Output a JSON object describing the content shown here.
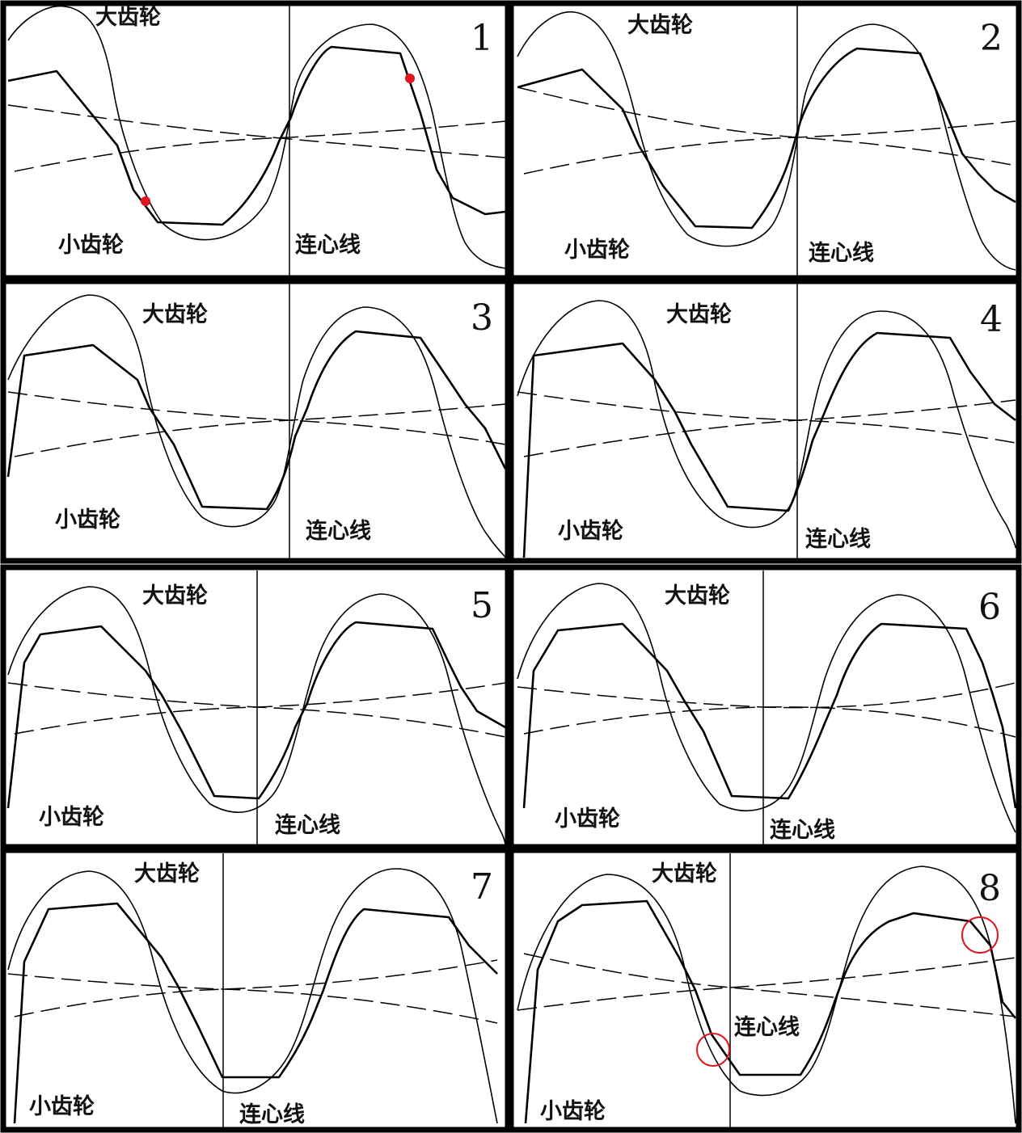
{
  "panels": [
    {
      "number": "1",
      "large_gear": "大齿轮",
      "small_gear": "小齿轮",
      "center_line": "连心线"
    },
    {
      "number": "2",
      "large_gear": "大齿轮",
      "small_gear": "小齿轮",
      "center_line": "连心线"
    },
    {
      "number": "3",
      "large_gear": "大齿轮",
      "small_gear": "小齿轮",
      "center_line": "连心线"
    },
    {
      "number": "4",
      "large_gear": "大齿轮",
      "small_gear": "小齿轮",
      "center_line": "连心线"
    },
    {
      "number": "5",
      "large_gear": "大齿轮",
      "small_gear": "小齿轮",
      "center_line": "连心线"
    },
    {
      "number": "6",
      "large_gear": "大齿轮",
      "small_gear": "小齿轮",
      "center_line": "连心线"
    },
    {
      "number": "7",
      "large_gear": "大齿轮",
      "small_gear": "小齿轮",
      "center_line": "连心线"
    },
    {
      "number": "8",
      "large_gear": "大齿轮",
      "small_gear": "小齿轮",
      "center_line": "连心线"
    }
  ],
  "colors": {
    "frame": "#000000",
    "line": "#000000",
    "marker": "#e0141e",
    "background": "#ffffff"
  },
  "markers": {
    "panel_1": "red contact dots",
    "panel_8": "red contact circles"
  }
}
